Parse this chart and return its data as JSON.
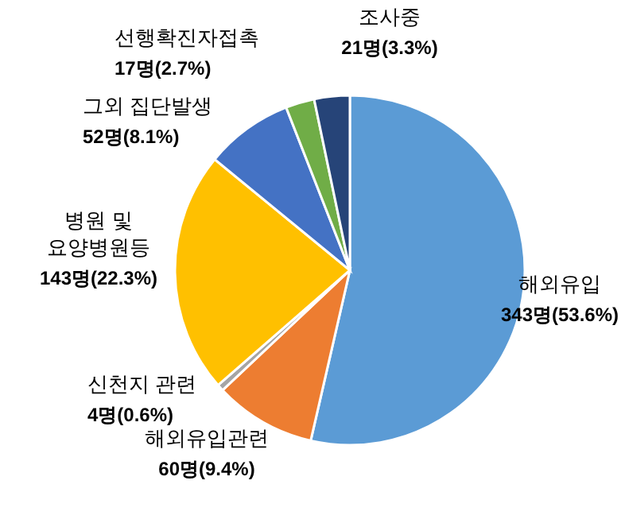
{
  "chart_data": {
    "type": "pie",
    "categories": [
      "해외유입",
      "해외유입관련",
      "신천지 관련",
      "병원 및 요양병원등",
      "그외 집단발생",
      "선행확진자접촉",
      "조사중"
    ],
    "values": [
      343,
      60,
      4,
      143,
      52,
      17,
      21
    ],
    "value_labels": [
      "343명(53.6%)",
      "60명(9.4%)",
      "4명(0.6%)",
      "143명(22.3%)",
      "52명(8.1%)",
      "17명(2.7%)",
      "21명(3.3%)"
    ],
    "colors": [
      "#5b9bd5",
      "#ed7d31",
      "#a5a5a5",
      "#ffc000",
      "#4472c4",
      "#70ad47",
      "#264478"
    ]
  }
}
